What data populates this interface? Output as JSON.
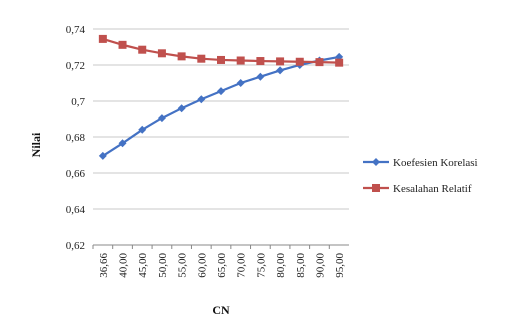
{
  "chart_data": {
    "type": "line",
    "title": "",
    "xlabel": "CN",
    "ylabel": "Nilai",
    "categories": [
      "36,66",
      "40,00",
      "45,00",
      "50,00",
      "55,00",
      "60,00",
      "65,00",
      "70,00",
      "75,00",
      "80,00",
      "85,00",
      "90,00",
      "95,00"
    ],
    "ylim": [
      0.62,
      0.74
    ],
    "yticks": [
      "0,62",
      "0,64",
      "0,66",
      "0,68",
      "0,7",
      "0,72",
      "0,74"
    ],
    "ytick_values": [
      0.62,
      0.64,
      0.66,
      0.68,
      0.7,
      0.72,
      0.74
    ],
    "grid": "horizontal",
    "legend_position": "right",
    "series": [
      {
        "name": "Koefesien Korelasi",
        "color": "#4472C4",
        "marker": "diamond",
        "values": [
          0.6695,
          0.6765,
          0.684,
          0.6905,
          0.696,
          0.701,
          0.7055,
          0.71,
          0.7135,
          0.717,
          0.72,
          0.7225,
          0.7245
        ]
      },
      {
        "name": "Kesalahan Relatif",
        "color": "#C0504D",
        "marker": "square",
        "values": [
          0.7345,
          0.7312,
          0.7285,
          0.7265,
          0.7248,
          0.7235,
          0.7228,
          0.7225,
          0.7222,
          0.722,
          0.7218,
          0.7216,
          0.7213
        ]
      }
    ]
  }
}
